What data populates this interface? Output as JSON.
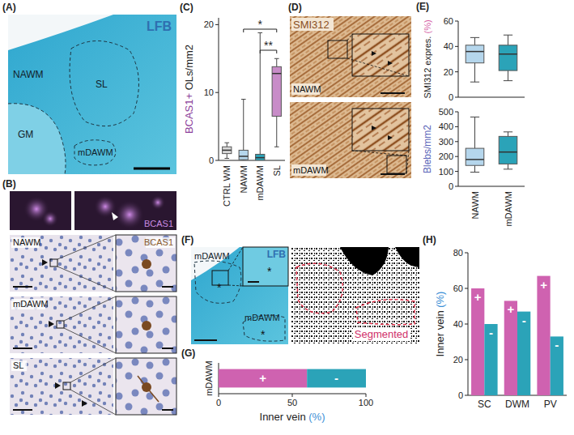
{
  "panel_labels": [
    "(A)",
    "(B)",
    "(C)",
    "(D)",
    "(E)",
    "(F)",
    "(G)",
    "(H)"
  ],
  "images": {
    "A": {
      "stain": "LFB",
      "regions": [
        "NAWM",
        "SL",
        "GM",
        "mDAWM"
      ]
    },
    "B": {
      "fluorescence": "BCAS1",
      "stain": "BCAS1",
      "rows": [
        "NAWM",
        "mDAWM",
        "SL"
      ]
    },
    "D": {
      "stain": "SMI312",
      "rows": [
        "NAWM",
        "mDAWM"
      ]
    },
    "F": {
      "stain": "LFB",
      "regions": [
        "mDAWM",
        "mDAWM"
      ],
      "marker": "*",
      "segmented": "Segmented"
    }
  },
  "chart_data": [
    {
      "type": "box",
      "ylabel": [
        {
          "text": "BCAS1+",
          "color": "#8b3d9a"
        },
        {
          "text": " OLs/mm2",
          "color": "#222222"
        }
      ],
      "categories": [
        "CTRL WM",
        "NAWM",
        "mDAWM",
        "SL"
      ],
      "boxes": [
        {
          "min": 0.3,
          "q1": 1,
          "median": 1.5,
          "q3": 2,
          "max": 2.6
        },
        {
          "min": 0,
          "q1": 0.1,
          "median": 0.6,
          "q3": 1.5,
          "max": 9
        },
        {
          "min": 0,
          "q1": 0,
          "median": 0.4,
          "q3": 0.9,
          "max": 18.8
        },
        {
          "min": 2,
          "q1": 6.5,
          "median": 12.8,
          "q3": 13.8,
          "max": 15
        }
      ],
      "colors": [
        "#d9d9d9",
        "#b5d6ec",
        "#2ba3b8",
        "#c88cc8"
      ],
      "ylim": [
        0,
        21
      ],
      "yticks": [
        0,
        10,
        20
      ],
      "annotations": [
        {
          "text": "*",
          "between": [
            "NAWM",
            "SL"
          ]
        },
        {
          "text": "**",
          "between": [
            "mDAWM",
            "SL"
          ]
        }
      ]
    },
    {
      "type": "box",
      "ylabel": [
        {
          "text": "SMI312 expres.",
          "color": "#222222"
        },
        {
          "text": " (%)",
          "color": "#d4589f"
        }
      ],
      "categories": [
        "NAWM",
        "mDAWM"
      ],
      "boxes": [
        {
          "min": 12,
          "q1": 27,
          "median": 36,
          "q3": 41,
          "max": 47
        },
        {
          "min": 13,
          "q1": 21,
          "median": 34,
          "q3": 41,
          "max": 49
        }
      ],
      "colors": [
        "#b5d6ec",
        "#2ba3b8"
      ],
      "ylim": [
        0,
        60
      ],
      "yticks": [
        0,
        20,
        40,
        60
      ],
      "tick_labels": "y"
    },
    {
      "type": "box",
      "ylabel": [
        {
          "text": "Blebs/mm2",
          "color": "#5a64b8"
        }
      ],
      "categories": [
        "NAWM",
        "mDAWM"
      ],
      "boxes": [
        {
          "min": 95,
          "q1": 140,
          "median": 180,
          "q3": 255,
          "max": 465
        },
        {
          "min": 115,
          "q1": 150,
          "median": 230,
          "q3": 335,
          "max": 365
        }
      ],
      "colors": [
        "#b5d6ec",
        "#2ba3b8"
      ],
      "ylim": [
        0,
        500
      ],
      "yticks": [
        0,
        100,
        200,
        300,
        400,
        500
      ]
    },
    {
      "type": "bar",
      "orientation": "horizontal",
      "stacked": true,
      "categories": [
        "mDAWM"
      ],
      "series": [
        {
          "name": "+",
          "color": "#cf62b0",
          "values": [
            60
          ]
        },
        {
          "name": "-",
          "color": "#2ba3b8",
          "values": [
            40
          ]
        }
      ],
      "xlabel": [
        {
          "text": "Inner vein",
          "color": "#222222"
        },
        {
          "text": " (%)",
          "color": "#3b8fd6"
        }
      ],
      "xlim": [
        0,
        100
      ],
      "xticks": [
        0,
        50,
        100
      ]
    },
    {
      "type": "bar",
      "categories": [
        "SC",
        "DWM",
        "PV"
      ],
      "series": [
        {
          "name": "+",
          "color": "#cf62b0",
          "values": [
            60,
            53,
            67
          ]
        },
        {
          "name": "-",
          "color": "#2ba3b8",
          "values": [
            40,
            47,
            33
          ]
        }
      ],
      "ylabel": [
        {
          "text": "Inner vein",
          "color": "#222222"
        },
        {
          "text": " (%)",
          "color": "#3b8fd6"
        }
      ],
      "ylim": [
        0,
        80
      ],
      "yticks": [
        0,
        20,
        40,
        60,
        80
      ]
    }
  ]
}
